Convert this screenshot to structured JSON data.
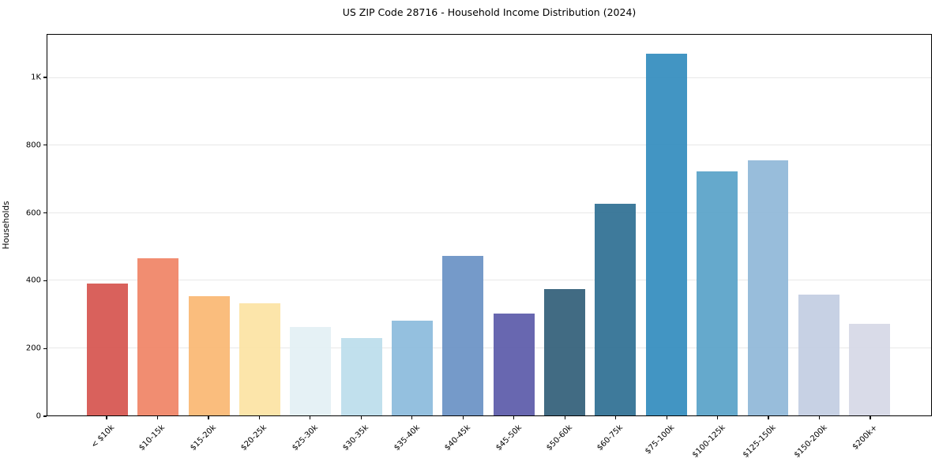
{
  "chart_data": {
    "type": "bar",
    "title": "US ZIP Code 28716 - Household Income Distribution (2024)",
    "xlabel": "",
    "ylabel": "Households",
    "categories": [
      "< $10k",
      "$10-15k",
      "$15-20k",
      "$20-25k",
      "$25-30k",
      "$30-35k",
      "$35-40k",
      "$40-45k",
      "$45-50k",
      "$50-60k",
      "$60-75k",
      "$75-100k",
      "$100-125k",
      "$125-150k",
      "$150-200k",
      "$200k+"
    ],
    "values": [
      390,
      466,
      354,
      333,
      262,
      230,
      282,
      473,
      301,
      375,
      627,
      1073,
      723,
      756,
      358,
      272
    ],
    "bar_colors": [
      "#d65550",
      "#f08466",
      "#fab873",
      "#fce3a4",
      "#e3f0f4",
      "#bcdeec",
      "#8cbbdd",
      "#6b92c5",
      "#5c5baa",
      "#33607a",
      "#2f7093",
      "#348dbe",
      "#59a2c8",
      "#90b8d8",
      "#c3cee2",
      "#d6d8e6"
    ],
    "ylim": [
      0,
      1128
    ],
    "yticks": [
      {
        "value": 0,
        "label": "0"
      },
      {
        "value": 200,
        "label": "200"
      },
      {
        "value": 400,
        "label": "400"
      },
      {
        "value": 600,
        "label": "600"
      },
      {
        "value": 800,
        "label": "800"
      },
      {
        "value": 1000,
        "label": "1K"
      }
    ],
    "grid": "horizontal",
    "legend": "none"
  }
}
